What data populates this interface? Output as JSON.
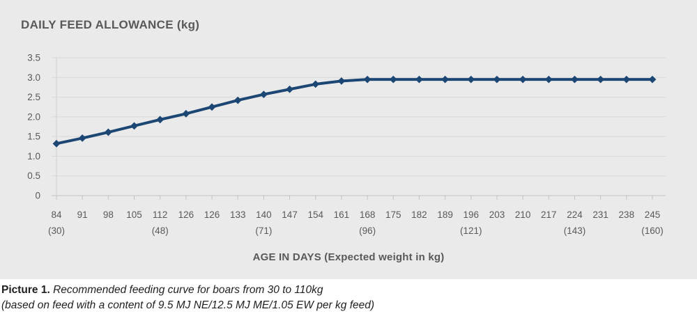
{
  "chart_data": {
    "type": "line",
    "title": "DAILY FEED ALLOWANCE (kg)",
    "xlabel": "AGE IN DAYS (Expected weight in kg)",
    "xlabel_main": "AGE IN DAYS",
    "xlabel_sub": "(Expected weight in kg)",
    "categories_age": [
      84,
      91,
      98,
      105,
      112,
      126,
      126,
      133,
      140,
      147,
      154,
      161,
      168,
      175,
      182,
      189,
      196,
      203,
      210,
      217,
      224,
      231,
      238,
      245
    ],
    "categories_weight_by_index": {
      "0": "(30)",
      "4": "(48)",
      "8": "(71)",
      "12": "(96)",
      "16": "(121)",
      "20": "(143)",
      "23": "(160)"
    },
    "series": [
      {
        "name": "Daily feed allowance (kg)",
        "values": [
          1.32,
          1.46,
          1.61,
          1.77,
          1.93,
          2.08,
          2.25,
          2.42,
          2.57,
          2.7,
          2.83,
          2.91,
          2.95,
          2.95,
          2.95,
          2.95,
          2.95,
          2.95,
          2.95,
          2.95,
          2.95,
          2.95,
          2.95,
          2.95
        ]
      }
    ],
    "ylim": [
      0,
      3.5
    ],
    "ytick_step": 0.5,
    "ytick_labels": [
      "0",
      "0.5",
      "1.0",
      "1.5",
      "2.0",
      "2.5",
      "3.0",
      "3.5"
    ],
    "grid": "horizontal",
    "legend": "none",
    "marker": "diamond",
    "line_color": "#1c4673"
  },
  "caption": {
    "label": "Picture 1.",
    "line1": "Recommended feeding curve for boars from 30 to 110kg",
    "line2": "(based on feed with a content of 9.5 MJ NE/12.5 MJ ME/1.05 EW per kg feed)"
  },
  "colors": {
    "card_bg": "#eaeaea",
    "grid": "#d8d8d8",
    "axis": "#c2c2c2",
    "y_axis_line": "#cfcfcf",
    "label_text": "#595959",
    "caption_text": "#1f1f1f",
    "line": "#1c4673"
  }
}
